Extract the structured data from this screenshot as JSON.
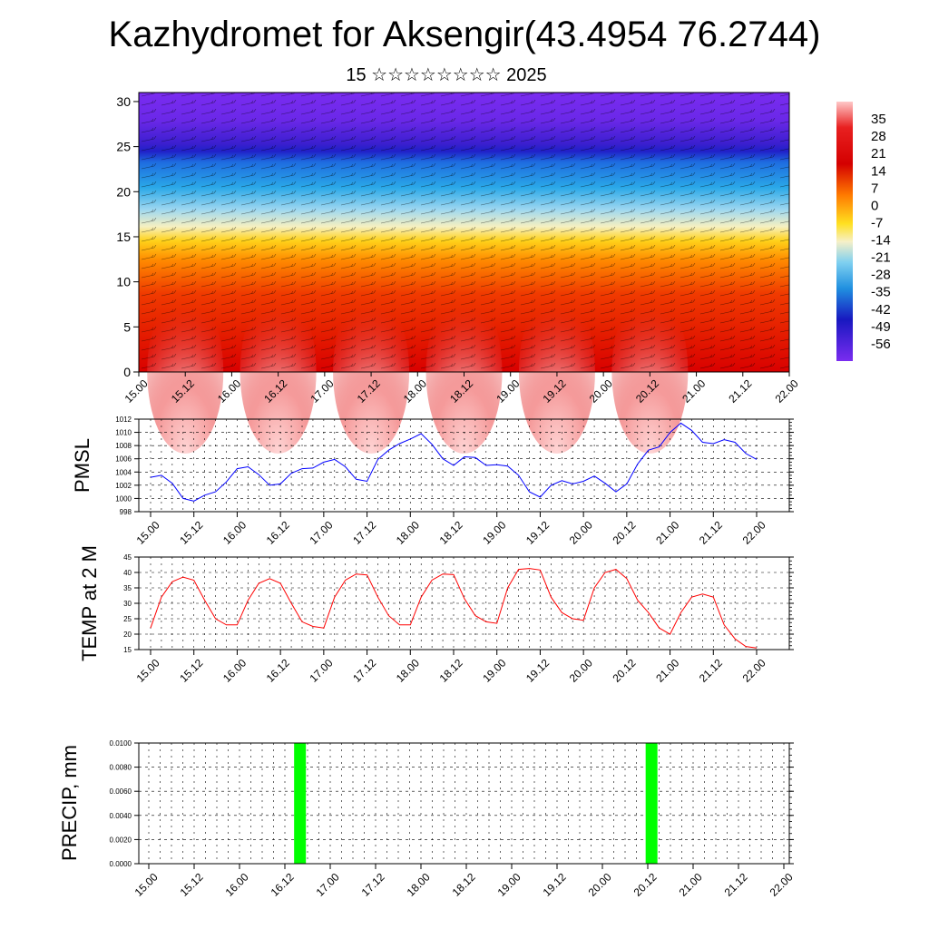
{
  "header": {
    "title": "Kazhydromet for Aksengir(43.4954 76.2744)",
    "subtitle": "15 ☆☆☆☆☆☆☆☆ 2025"
  },
  "colors": {
    "pmsl_line": "#0000ff",
    "temp_line": "#ff0000",
    "precip_bar": "#00ff00",
    "grid": "#000000"
  },
  "chart_data": [
    {
      "id": "cross_section",
      "type": "heatmap",
      "title": "",
      "xlabel": "",
      "ylabel": "",
      "x_ticks": [
        "15.00",
        "15.12",
        "16.00",
        "16.12",
        "17.00",
        "17.12",
        "18.00",
        "18.12",
        "19.00",
        "19.12",
        "20.00",
        "20.12",
        "21.00",
        "21.12",
        "22.00"
      ],
      "y_ticks": [
        0,
        5,
        10,
        15,
        20,
        25,
        30
      ],
      "ylim": [
        0,
        31
      ],
      "colorbar_labels": [
        "35",
        "28",
        "21",
        "14",
        "7",
        "0",
        "-7",
        "-14",
        "-21",
        "-28",
        "-35",
        "-42",
        "-49",
        "-56"
      ],
      "colorbar_range": [
        -63,
        42
      ],
      "overlay": "wind barbs",
      "daytime_surface_maxima_x": [
        "15.06",
        "16.06",
        "17.06",
        "18.06",
        "19.06",
        "20.06"
      ]
    },
    {
      "id": "pmsl",
      "type": "line",
      "ylabel": "PMSL",
      "xlabel": "",
      "x_ticks": [
        "15.00",
        "15.12",
        "16.00",
        "16.12",
        "17.00",
        "17.12",
        "18.00",
        "18.12",
        "19.00",
        "19.12",
        "20.00",
        "20.12",
        "21.00",
        "21.12",
        "22.00"
      ],
      "y_ticks": [
        998,
        1000,
        1002,
        1004,
        1006,
        1008,
        1010,
        1012
      ],
      "ylim": [
        998,
        1012
      ],
      "x_hours": [
        0,
        3,
        6,
        9,
        12,
        15,
        18,
        21,
        24,
        27,
        30,
        33,
        36,
        39,
        42,
        45,
        48,
        51,
        54,
        57,
        60,
        63,
        66,
        69,
        72,
        75,
        78,
        81,
        84,
        87,
        90,
        93,
        96,
        99,
        102,
        105,
        108,
        111,
        114,
        117,
        120,
        123,
        126,
        129,
        132,
        135,
        138,
        141,
        144,
        147,
        150,
        153,
        156,
        159,
        162,
        165,
        168
      ],
      "values": [
        1003.2,
        1003.5,
        1002.3,
        1000.0,
        999.6,
        1000.5,
        1001.0,
        1002.5,
        1004.5,
        1004.8,
        1003.6,
        1002.0,
        1002.2,
        1003.8,
        1004.5,
        1004.6,
        1005.5,
        1005.9,
        1004.8,
        1002.9,
        1002.6,
        1005.9,
        1007.3,
        1008.3,
        1009.0,
        1009.8,
        1008.2,
        1006.0,
        1005.0,
        1006.3,
        1006.2,
        1005.0,
        1005.1,
        1004.9,
        1003.5,
        1001.0,
        1000.2,
        1002.0,
        1002.7,
        1002.2,
        1002.6,
        1003.4,
        1002.3,
        1001.0,
        1002.2,
        1005.2,
        1007.3,
        1007.8,
        1010.0,
        1011.4,
        1010.3,
        1008.5,
        1008.3,
        1008.9,
        1008.5,
        1006.8,
        1005.9
      ]
    },
    {
      "id": "temp",
      "type": "line",
      "ylabel": "TEMP at 2 M",
      "xlabel": "",
      "x_ticks": [
        "15.00",
        "15.12",
        "16.00",
        "16.12",
        "17.00",
        "17.12",
        "18.00",
        "18.12",
        "19.00",
        "19.12",
        "20.00",
        "20.12",
        "21.00",
        "21.12",
        "22.00"
      ],
      "y_ticks": [
        15,
        20,
        25,
        30,
        35,
        40,
        45
      ],
      "ylim": [
        15,
        45
      ],
      "x_hours": [
        0,
        3,
        6,
        9,
        12,
        15,
        18,
        21,
        24,
        27,
        30,
        33,
        36,
        39,
        42,
        45,
        48,
        51,
        54,
        57,
        60,
        63,
        66,
        69,
        72,
        75,
        78,
        81,
        84,
        87,
        90,
        93,
        96,
        99,
        102,
        105,
        108,
        111,
        114,
        117,
        120,
        123,
        126,
        129,
        132,
        135,
        138,
        141,
        144,
        147,
        150,
        153,
        156,
        159,
        162,
        165,
        168
      ],
      "values": [
        22,
        32,
        37,
        38.5,
        37.5,
        31,
        25,
        23,
        23,
        31,
        36.5,
        38,
        36.5,
        30,
        24,
        22.5,
        22,
        32,
        37.5,
        39.5,
        39.2,
        32,
        26,
        23,
        23,
        32,
        37.5,
        39.5,
        39.3,
        31.5,
        26,
        24,
        23.5,
        35,
        41,
        41.3,
        40.8,
        32,
        27,
        25,
        24.5,
        35,
        40,
        41,
        38,
        31,
        27,
        22,
        20,
        27,
        32,
        33,
        32,
        23,
        18.5,
        16,
        15.5
      ]
    },
    {
      "id": "precip",
      "type": "bar",
      "ylabel": "PRECIP, mm",
      "xlabel": "",
      "x_ticks": [
        "15.00",
        "15.12",
        "16.00",
        "16.12",
        "17.00",
        "17.12",
        "18.00",
        "18.12",
        "19.00",
        "19.12",
        "20.00",
        "20.12",
        "21.00",
        "21.12",
        "22.00"
      ],
      "y_ticks": [
        "0.0000",
        "0.0020",
        "0.0040",
        "0.0060",
        "0.0080",
        "0.0100"
      ],
      "ylim": [
        0,
        0.01
      ],
      "bars": [
        {
          "x_hours": 40,
          "value": 0.01
        },
        {
          "x_hours": 133,
          "value": 0.01
        }
      ]
    }
  ]
}
